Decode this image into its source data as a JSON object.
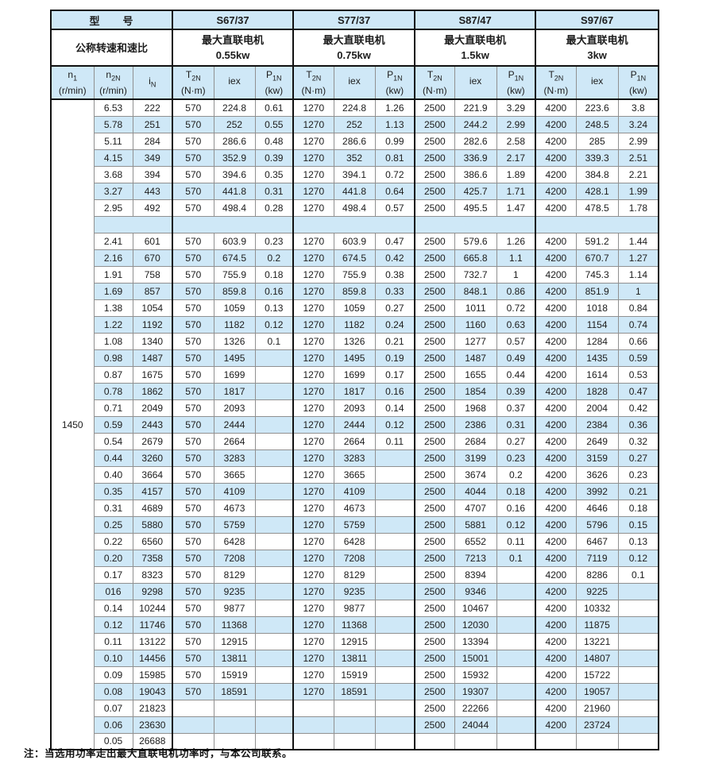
{
  "page": {
    "note": "注：当选用功率走出最大直联电机功率时，与本公司联系。"
  },
  "colors": {
    "row_highlight": "#cfe8f7",
    "border_dark": "#111111",
    "border_light": "#909090"
  },
  "table": {
    "title_label": "型　　号",
    "speed_ratio_label": "公称转速和速比",
    "n1_value": "1450",
    "models": [
      {
        "name": "S67/37",
        "motor_line1": "最大直联电机",
        "motor_line2": "0.55kw"
      },
      {
        "name": "S77/37",
        "motor_line1": "最大直联电机",
        "motor_line2": "0.75kw"
      },
      {
        "name": "S87/47",
        "motor_line1": "最大直联电机",
        "motor_line2": "1.5kw"
      },
      {
        "name": "S97/67",
        "motor_line1": "最大直联电机",
        "motor_line2": "3kw"
      }
    ],
    "col_headers": {
      "n1": {
        "base": "n",
        "sub": "1",
        "unit": "(r/min)"
      },
      "n2n": {
        "base": "n",
        "sub": "2N",
        "unit": "(r/min)"
      },
      "in": {
        "base": "i",
        "sub": "N",
        "unit": ""
      },
      "t2n": {
        "base": "T",
        "sub": "2N",
        "unit": "(N·m)"
      },
      "iex": {
        "base": "iex",
        "sub": "",
        "unit": ""
      },
      "p1n": {
        "base": "P",
        "sub": "1N",
        "unit": "(kw)"
      }
    },
    "rows": [
      {
        "type": "data",
        "shade": false,
        "cells": [
          "6.53",
          "222",
          "570",
          "224.8",
          "0.61",
          "1270",
          "224.8",
          "1.26",
          "2500",
          "221.9",
          "3.29",
          "4200",
          "223.6",
          "3.8"
        ]
      },
      {
        "type": "data",
        "shade": true,
        "cells": [
          "5.78",
          "251",
          "570",
          "252",
          "0.55",
          "1270",
          "252",
          "1.13",
          "2500",
          "244.2",
          "2.99",
          "4200",
          "248.5",
          "3.24"
        ]
      },
      {
        "type": "data",
        "shade": false,
        "cells": [
          "5.11",
          "284",
          "570",
          "286.6",
          "0.48",
          "1270",
          "286.6",
          "0.99",
          "2500",
          "282.6",
          "2.58",
          "4200",
          "285",
          "2.99"
        ]
      },
      {
        "type": "data",
        "shade": true,
        "cells": [
          "4.15",
          "349",
          "570",
          "352.9",
          "0.39",
          "1270",
          "352",
          "0.81",
          "2500",
          "336.9",
          "2.17",
          "4200",
          "339.3",
          "2.51"
        ]
      },
      {
        "type": "data",
        "shade": false,
        "cells": [
          "3.68",
          "394",
          "570",
          "394.6",
          "0.35",
          "1270",
          "394.1",
          "0.72",
          "2500",
          "386.6",
          "1.89",
          "4200",
          "384.8",
          "2.21"
        ]
      },
      {
        "type": "data",
        "shade": true,
        "cells": [
          "3.27",
          "443",
          "570",
          "441.8",
          "0.31",
          "1270",
          "441.8",
          "0.64",
          "2500",
          "425.7",
          "1.71",
          "4200",
          "428.1",
          "1.99"
        ]
      },
      {
        "type": "data",
        "shade": false,
        "cells": [
          "2.95",
          "492",
          "570",
          "498.4",
          "0.28",
          "1270",
          "498.4",
          "0.57",
          "2500",
          "495.5",
          "1.47",
          "4200",
          "478.5",
          "1.78"
        ]
      },
      {
        "type": "separator",
        "shade": true
      },
      {
        "type": "data",
        "shade": false,
        "cells": [
          "2.41",
          "601",
          "570",
          "603.9",
          "0.23",
          "1270",
          "603.9",
          "0.47",
          "2500",
          "579.6",
          "1.26",
          "4200",
          "591.2",
          "1.44"
        ]
      },
      {
        "type": "data",
        "shade": true,
        "cells": [
          "2.16",
          "670",
          "570",
          "674.5",
          "0.2",
          "1270",
          "674.5",
          "0.42",
          "2500",
          "665.8",
          "1.1",
          "4200",
          "670.7",
          "1.27"
        ]
      },
      {
        "type": "data",
        "shade": false,
        "cells": [
          "1.91",
          "758",
          "570",
          "755.9",
          "0.18",
          "1270",
          "755.9",
          "0.38",
          "2500",
          "732.7",
          "1",
          "4200",
          "745.3",
          "1.14"
        ]
      },
      {
        "type": "data",
        "shade": true,
        "cells": [
          "1.69",
          "857",
          "570",
          "859.8",
          "0.16",
          "1270",
          "859.8",
          "0.33",
          "2500",
          "848.1",
          "0.86",
          "4200",
          "851.9",
          "1"
        ]
      },
      {
        "type": "data",
        "shade": false,
        "cells": [
          "1.38",
          "1054",
          "570",
          "1059",
          "0.13",
          "1270",
          "1059",
          "0.27",
          "2500",
          "1011",
          "0.72",
          "4200",
          "1018",
          "0.84"
        ]
      },
      {
        "type": "data",
        "shade": true,
        "cells": [
          "1.22",
          "1192",
          "570",
          "1182",
          "0.12",
          "1270",
          "1182",
          "0.24",
          "2500",
          "1160",
          "0.63",
          "4200",
          "1154",
          "0.74"
        ]
      },
      {
        "type": "data",
        "shade": false,
        "cells": [
          "1.08",
          "1340",
          "570",
          "1326",
          "0.1",
          "1270",
          "1326",
          "0.21",
          "2500",
          "1277",
          "0.57",
          "4200",
          "1284",
          "0.66"
        ]
      },
      {
        "type": "data",
        "shade": true,
        "cells": [
          "0.98",
          "1487",
          "570",
          "1495",
          "",
          "1270",
          "1495",
          "0.19",
          "2500",
          "1487",
          "0.49",
          "4200",
          "1435",
          "0.59"
        ]
      },
      {
        "type": "data",
        "shade": false,
        "cells": [
          "0.87",
          "1675",
          "570",
          "1699",
          "",
          "1270",
          "1699",
          "0.17",
          "2500",
          "1655",
          "0.44",
          "4200",
          "1614",
          "0.53"
        ]
      },
      {
        "type": "data",
        "shade": true,
        "cells": [
          "0.78",
          "1862",
          "570",
          "1817",
          "",
          "1270",
          "1817",
          "0.16",
          "2500",
          "1854",
          "0.39",
          "4200",
          "1828",
          "0.47"
        ]
      },
      {
        "type": "data",
        "shade": false,
        "cells": [
          "0.71",
          "2049",
          "570",
          "2093",
          "",
          "1270",
          "2093",
          "0.14",
          "2500",
          "1968",
          "0.37",
          "4200",
          "2004",
          "0.42"
        ]
      },
      {
        "type": "data",
        "shade": true,
        "cells": [
          "0.59",
          "2443",
          "570",
          "2444",
          "",
          "1270",
          "2444",
          "0.12",
          "2500",
          "2386",
          "0.31",
          "4200",
          "2384",
          "0.36"
        ]
      },
      {
        "type": "data",
        "shade": false,
        "cells": [
          "0.54",
          "2679",
          "570",
          "2664",
          "",
          "1270",
          "2664",
          "0.11",
          "2500",
          "2684",
          "0.27",
          "4200",
          "2649",
          "0.32"
        ]
      },
      {
        "type": "data",
        "shade": true,
        "cells": [
          "0.44",
          "3260",
          "570",
          "3283",
          "",
          "1270",
          "3283",
          "",
          "2500",
          "3199",
          "0.23",
          "4200",
          "3159",
          "0.27"
        ]
      },
      {
        "type": "data",
        "shade": false,
        "cells": [
          "0.40",
          "3664",
          "570",
          "3665",
          "",
          "1270",
          "3665",
          "",
          "2500",
          "3674",
          "0.2",
          "4200",
          "3626",
          "0.23"
        ]
      },
      {
        "type": "data",
        "shade": true,
        "cells": [
          "0.35",
          "4157",
          "570",
          "4109",
          "",
          "1270",
          "4109",
          "",
          "2500",
          "4044",
          "0.18",
          "4200",
          "3992",
          "0.21"
        ]
      },
      {
        "type": "data",
        "shade": false,
        "cells": [
          "0.31",
          "4689",
          "570",
          "4673",
          "",
          "1270",
          "4673",
          "",
          "2500",
          "4707",
          "0.16",
          "4200",
          "4646",
          "0.18"
        ]
      },
      {
        "type": "data",
        "shade": true,
        "cells": [
          "0.25",
          "5880",
          "570",
          "5759",
          "",
          "1270",
          "5759",
          "",
          "2500",
          "5881",
          "0.12",
          "4200",
          "5796",
          "0.15"
        ]
      },
      {
        "type": "data",
        "shade": false,
        "cells": [
          "0.22",
          "6560",
          "570",
          "6428",
          "",
          "1270",
          "6428",
          "",
          "2500",
          "6552",
          "0.11",
          "4200",
          "6467",
          "0.13"
        ]
      },
      {
        "type": "data",
        "shade": true,
        "cells": [
          "0.20",
          "7358",
          "570",
          "7208",
          "",
          "1270",
          "7208",
          "",
          "2500",
          "7213",
          "0.1",
          "4200",
          "7119",
          "0.12"
        ]
      },
      {
        "type": "data",
        "shade": false,
        "cells": [
          "0.17",
          "8323",
          "570",
          "8129",
          "",
          "1270",
          "8129",
          "",
          "2500",
          "8394",
          "",
          "4200",
          "8286",
          "0.1"
        ]
      },
      {
        "type": "data",
        "shade": true,
        "cells": [
          "016",
          "9298",
          "570",
          "9235",
          "",
          "1270",
          "9235",
          "",
          "2500",
          "9346",
          "",
          "4200",
          "9225",
          ""
        ]
      },
      {
        "type": "data",
        "shade": false,
        "cells": [
          "0.14",
          "10244",
          "570",
          "9877",
          "",
          "1270",
          "9877",
          "",
          "2500",
          "10467",
          "",
          "4200",
          "10332",
          ""
        ]
      },
      {
        "type": "data",
        "shade": true,
        "cells": [
          "0.12",
          "11746",
          "570",
          "11368",
          "",
          "1270",
          "11368",
          "",
          "2500",
          "12030",
          "",
          "4200",
          "11875",
          ""
        ]
      },
      {
        "type": "data",
        "shade": false,
        "cells": [
          "0.11",
          "13122",
          "570",
          "12915",
          "",
          "1270",
          "12915",
          "",
          "2500",
          "13394",
          "",
          "4200",
          "13221",
          ""
        ]
      },
      {
        "type": "data",
        "shade": true,
        "cells": [
          "0.10",
          "14456",
          "570",
          "13811",
          "",
          "1270",
          "13811",
          "",
          "2500",
          "15001",
          "",
          "4200",
          "14807",
          ""
        ]
      },
      {
        "type": "data",
        "shade": false,
        "cells": [
          "0.09",
          "15985",
          "570",
          "15919",
          "",
          "1270",
          "15919",
          "",
          "2500",
          "15932",
          "",
          "4200",
          "15722",
          ""
        ]
      },
      {
        "type": "data",
        "shade": true,
        "cells": [
          "0.08",
          "19043",
          "570",
          "18591",
          "",
          "1270",
          "18591",
          "",
          "2500",
          "19307",
          "",
          "4200",
          "19057",
          ""
        ]
      },
      {
        "type": "data",
        "shade": false,
        "cells": [
          "0.07",
          "21823",
          "",
          "",
          "",
          "",
          "",
          "",
          "2500",
          "22266",
          "",
          "4200",
          "21960",
          ""
        ]
      },
      {
        "type": "data",
        "shade": true,
        "cells": [
          "0.06",
          "23630",
          "",
          "",
          "",
          "",
          "",
          "",
          "2500",
          "24044",
          "",
          "4200",
          "23724",
          ""
        ]
      },
      {
        "type": "data",
        "shade": false,
        "cells": [
          "0.05",
          "26688",
          "",
          "",
          "",
          "",
          "",
          "",
          "",
          "",
          "",
          "",
          "",
          ""
        ]
      }
    ]
  }
}
